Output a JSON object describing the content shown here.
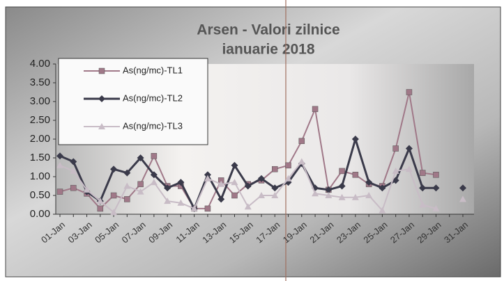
{
  "chart_data": {
    "type": "line",
    "title": "Arsen - Valori zilnice",
    "subtitle": "ianuarie 2018",
    "categories": [
      "01-Jan",
      null,
      "03-Jan",
      null,
      "05-Jan",
      null,
      "07-Jan",
      null,
      "09-Jan",
      null,
      "11-Jan",
      null,
      "13-Jan",
      null,
      "15-Jan",
      null,
      "17-Jan",
      null,
      "19-Jan",
      null,
      "21-Jan",
      null,
      "23-Jan",
      null,
      "25-Jan",
      null,
      "27-Jan",
      null,
      "29-Jan",
      null,
      "31-Jan"
    ],
    "series": [
      {
        "name": "As(ng/mc)-TL1",
        "color": "#a07888",
        "marker": "square",
        "values": [
          0.6,
          0.7,
          0.55,
          0.15,
          0.5,
          0.4,
          0.8,
          1.55,
          0.75,
          0.75,
          0.15,
          0.15,
          0.9,
          0.5,
          0.8,
          0.9,
          1.2,
          1.3,
          1.95,
          2.8,
          0.65,
          1.15,
          1.05,
          0.8,
          0.75,
          1.75,
          3.25,
          1.1,
          1.05,
          null,
          null
        ]
      },
      {
        "name": "As(ng/mc)-TL2",
        "color": "#3a3a4a",
        "marker": "diamond",
        "values": [
          1.55,
          1.4,
          0.6,
          0.35,
          1.2,
          1.1,
          1.5,
          1.05,
          0.7,
          0.85,
          0.15,
          1.05,
          0.4,
          1.3,
          0.75,
          0.95,
          0.7,
          0.85,
          1.35,
          0.7,
          0.65,
          0.75,
          2.0,
          0.85,
          0.7,
          0.9,
          1.75,
          0.7,
          0.7,
          null,
          0.7
        ]
      },
      {
        "name": "As(ng/mc)-TL3",
        "color": "#c8bcc6",
        "marker": "triangle",
        "values": [
          1.3,
          1.15,
          0.65,
          0.35,
          0.05,
          0.75,
          0.6,
          0.85,
          0.35,
          0.3,
          0.15,
          0.95,
          0.8,
          0.85,
          0.2,
          0.5,
          0.5,
          0.95,
          1.4,
          0.55,
          0.5,
          0.45,
          0.45,
          0.5,
          0.1,
          1.15,
          1.2,
          0.25,
          0.15,
          null,
          0.4
        ]
      }
    ],
    "ylim": [
      0,
      4
    ],
    "yticks": [
      {
        "value": 0,
        "label": "0.00"
      },
      {
        "value": 0.5,
        "label": "0.50"
      },
      {
        "value": 1,
        "label": "1.00"
      },
      {
        "value": 1.5,
        "label": "1.50"
      },
      {
        "value": 2,
        "label": "2.00"
      },
      {
        "value": 2.5,
        "label": "2.50"
      },
      {
        "value": 3,
        "label": "3.00"
      },
      {
        "value": 3.5,
        "label": "3.50"
      },
      {
        "value": 4,
        "label": "4.00"
      }
    ],
    "legend": "top-left"
  }
}
